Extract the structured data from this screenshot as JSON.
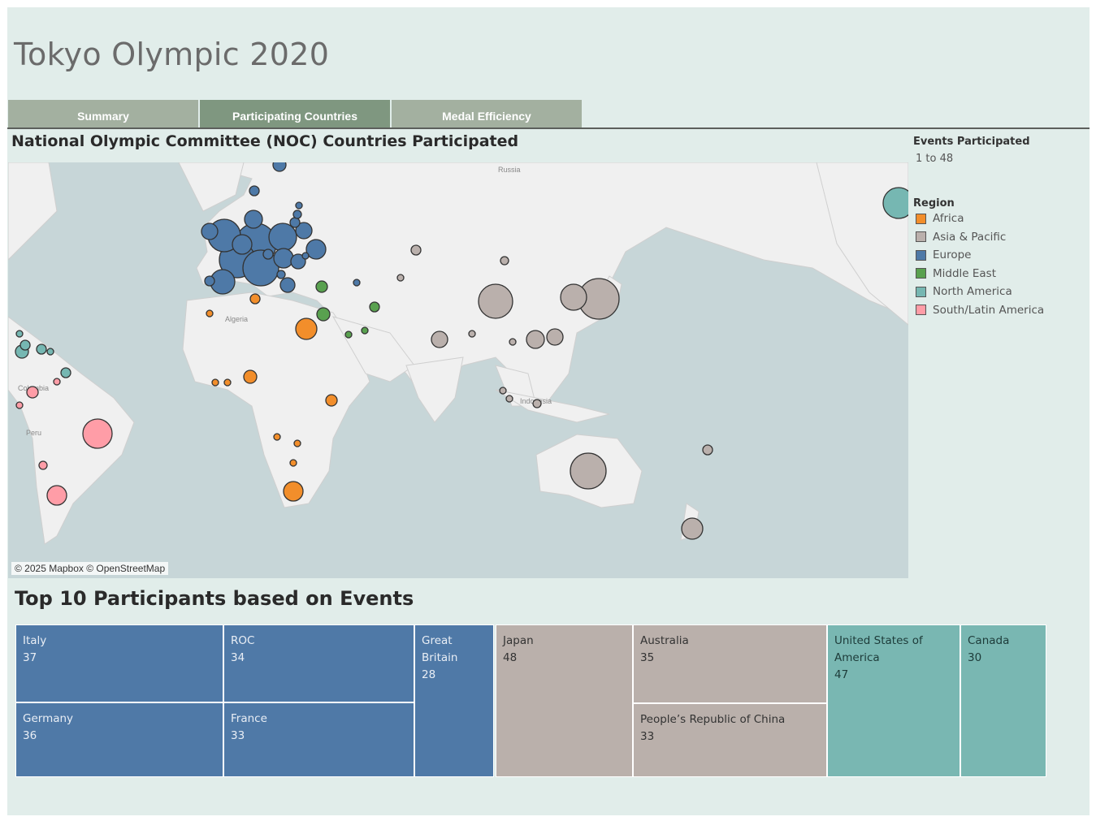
{
  "title": "Tokyo Olympic 2020",
  "tabs": [
    {
      "label": "Summary",
      "active": false
    },
    {
      "label": "Participating Countries",
      "active": true
    },
    {
      "label": "Medal Efficiency",
      "active": false
    }
  ],
  "map": {
    "title": "National Olympic Committee (NOC) Countries Participated",
    "attribution": "© 2025 Mapbox © OpenStreetMap",
    "labels": [
      "Russia",
      "Algeria",
      "Indonesia",
      "Colombia",
      "Peru"
    ]
  },
  "legend": {
    "size_title": "Events Participated",
    "size_range": "1 to 48",
    "color_title": "Region",
    "regions": [
      {
        "label": "Africa",
        "color": "#f28e2b"
      },
      {
        "label": "Asia & Pacific",
        "color": "#bab0ac"
      },
      {
        "label": "Europe",
        "color": "#4e79a7"
      },
      {
        "label": "Middle East",
        "color": "#59a14f"
      },
      {
        "label": "North America",
        "color": "#76b7b2"
      },
      {
        "label": "South/Latin America",
        "color": "#ff9da7"
      }
    ]
  },
  "top10": {
    "title": "Top 10 Participants based on Events",
    "cells": [
      {
        "name": "Italy",
        "value": "37",
        "region": "Europe"
      },
      {
        "name": "ROC",
        "value": "34",
        "region": "Europe"
      },
      {
        "name": "Great Britain",
        "value": "28",
        "region": "Europe"
      },
      {
        "name": "Germany",
        "value": "36",
        "region": "Europe"
      },
      {
        "name": "France",
        "value": "33",
        "region": "Europe"
      },
      {
        "name": "Japan",
        "value": "48",
        "region": "Asia & Pacific"
      },
      {
        "name": "Australia",
        "value": "35",
        "region": "Asia & Pacific"
      },
      {
        "name": "People’s Republic of China",
        "value": "33",
        "region": "Asia & Pacific"
      },
      {
        "name": "United States of America",
        "value": "47",
        "region": "North America"
      },
      {
        "name": "Canada",
        "value": "30",
        "region": "North America"
      }
    ]
  }
}
